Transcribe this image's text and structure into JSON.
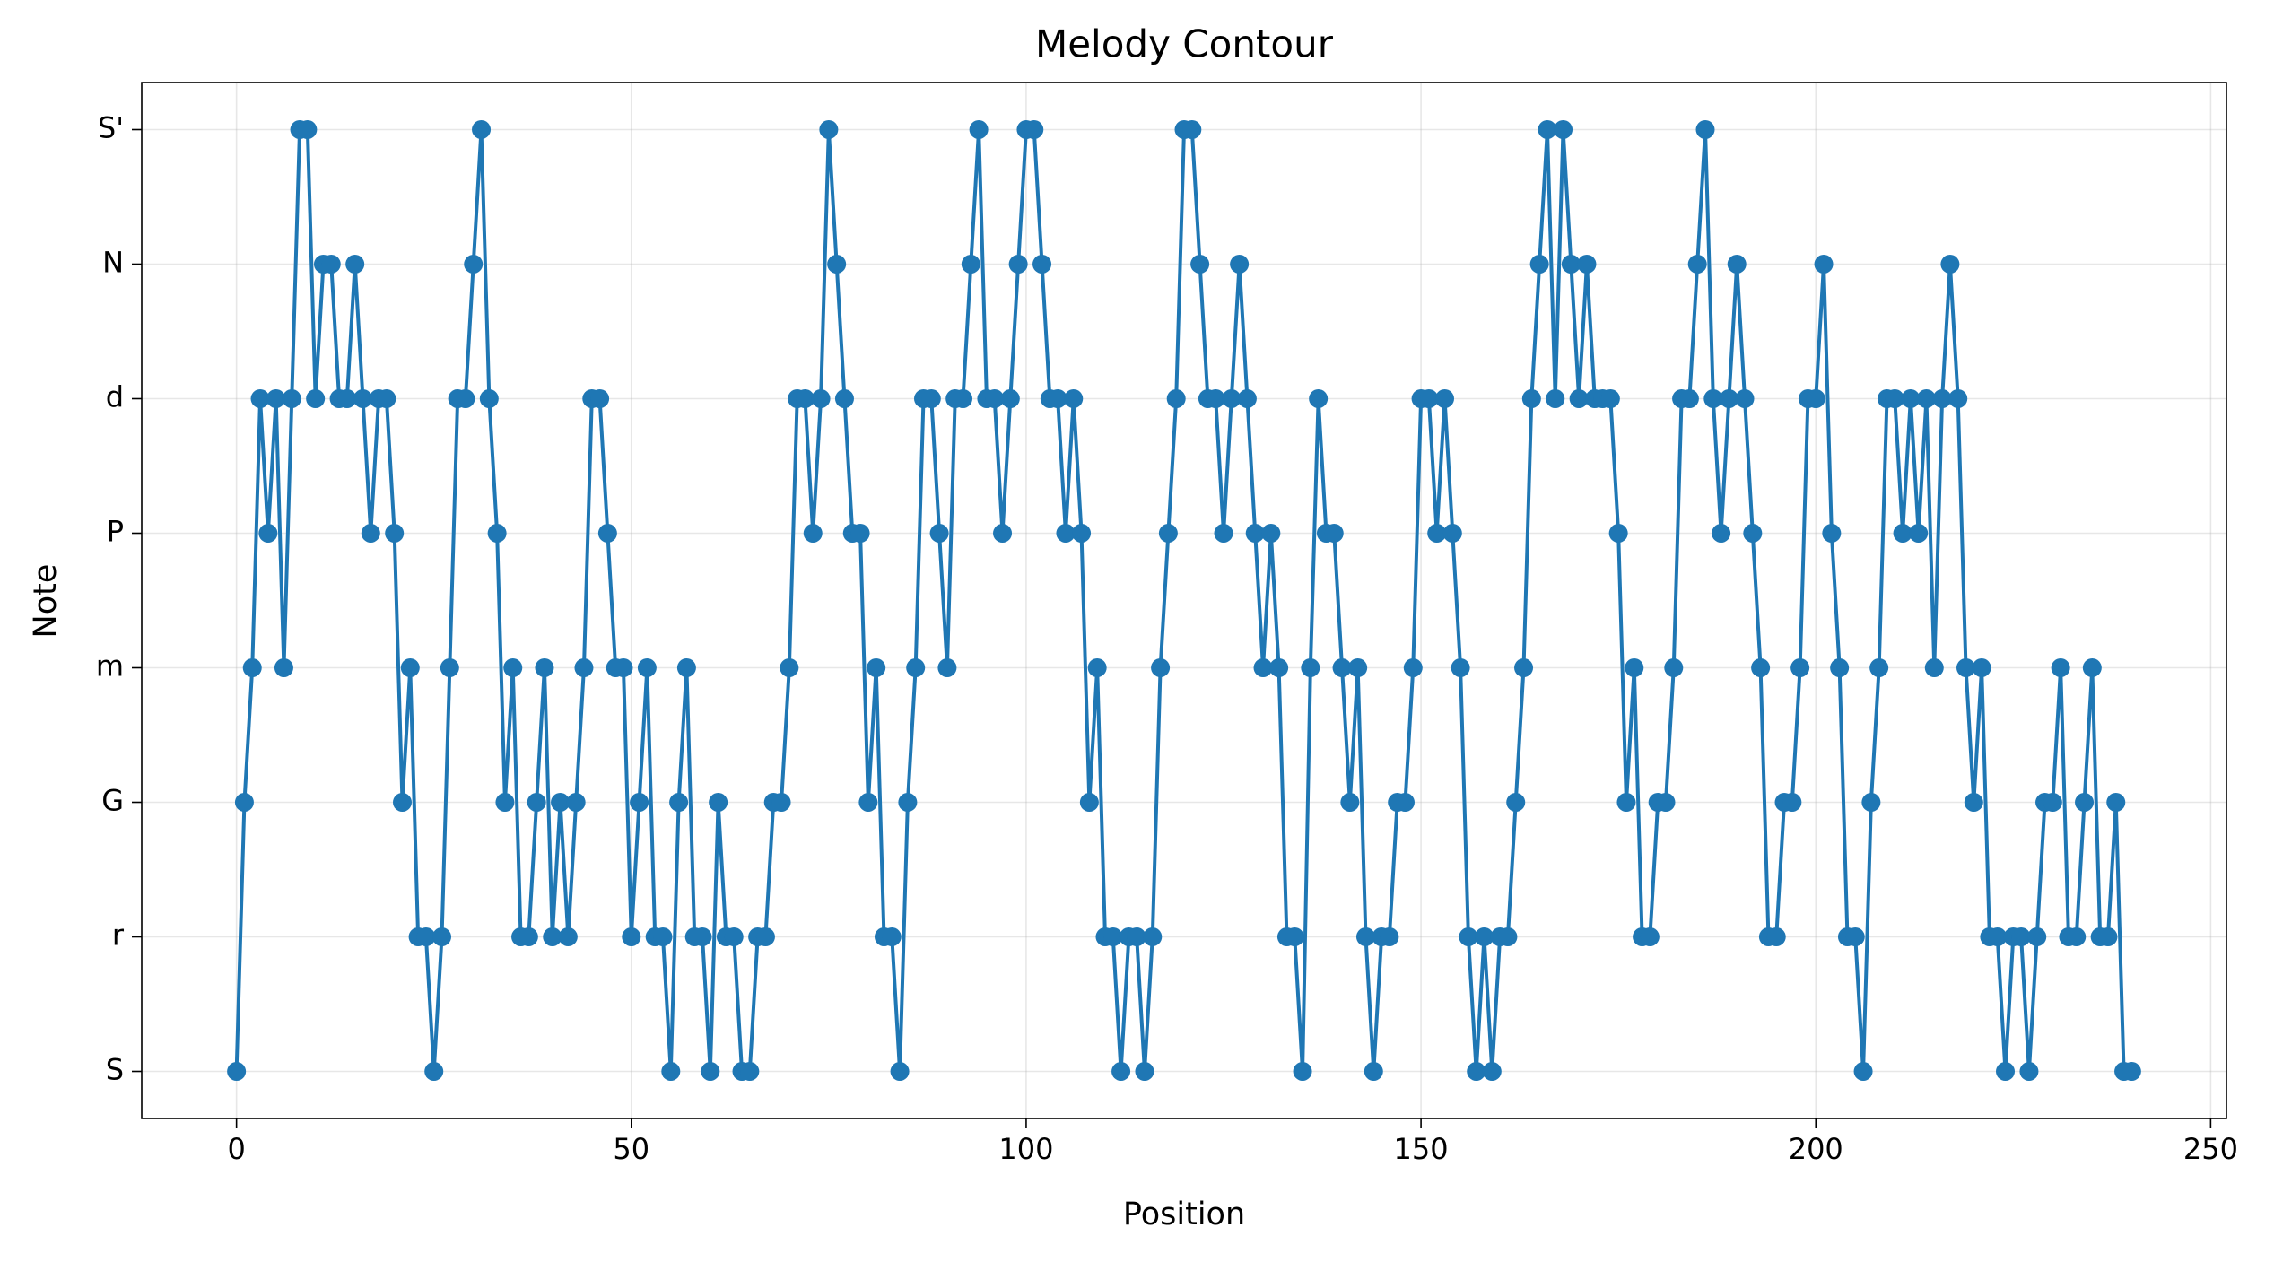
{
  "chart_data": {
    "type": "line",
    "title": "Melody Contour",
    "xlabel": "Position",
    "ylabel": "Note",
    "color": "#1f77b4",
    "grid": true,
    "x": [
      0,
      1,
      2,
      3,
      4,
      5,
      6,
      7,
      8,
      9,
      10,
      11,
      12,
      13,
      14,
      15,
      16,
      17,
      18,
      19,
      20,
      21,
      22,
      23,
      24,
      25,
      26,
      27,
      28,
      29,
      30,
      31,
      32,
      33,
      34,
      35,
      36,
      37,
      38,
      39,
      40,
      41,
      42,
      43,
      44,
      45,
      46,
      47,
      48,
      49,
      50,
      51,
      52,
      53,
      54,
      55,
      56,
      57,
      58,
      59,
      60,
      61,
      62,
      63,
      64,
      65,
      66,
      67,
      68,
      69,
      70,
      71,
      72,
      73,
      74,
      75,
      76,
      77,
      78,
      79,
      80,
      81,
      82,
      83,
      84,
      85,
      86,
      87,
      88,
      89,
      90,
      91,
      92,
      93,
      94,
      95,
      96,
      97,
      98,
      99,
      100,
      101,
      102,
      103,
      104,
      105,
      106,
      107,
      108,
      109,
      110,
      111,
      112,
      113,
      114,
      115,
      116,
      117,
      118,
      119,
      120,
      121,
      122,
      123,
      124,
      125,
      126,
      127,
      128,
      129,
      130,
      131,
      132,
      133,
      134,
      135,
      136,
      137,
      138,
      139,
      140,
      141,
      142,
      143,
      144,
      145,
      146,
      147,
      148,
      149,
      150,
      151,
      152,
      153,
      154,
      155,
      156,
      157,
      158,
      159,
      160,
      161,
      162,
      163,
      164,
      165,
      166,
      167,
      168,
      169,
      170,
      171,
      172,
      173,
      174,
      175,
      176,
      177,
      178,
      179,
      180,
      181,
      182,
      183,
      184,
      185,
      186,
      187,
      188,
      189,
      190,
      191,
      192,
      193,
      194,
      195,
      196,
      197,
      198,
      199,
      200,
      201,
      202,
      203,
      204,
      205,
      206,
      207,
      208,
      209,
      210,
      211,
      212,
      213,
      214,
      215,
      216,
      217,
      218,
      219,
      220,
      221,
      222,
      223,
      224,
      225,
      226,
      227,
      228,
      229,
      230,
      231,
      232,
      233,
      234,
      235,
      236,
      237,
      238,
      239,
      240
    ],
    "values": [
      0,
      2,
      3,
      5,
      4,
      5,
      3,
      5,
      7,
      7,
      5,
      6,
      6,
      5,
      5,
      6,
      5,
      4,
      5,
      5,
      4,
      2,
      3,
      1,
      1,
      0,
      1,
      3,
      5,
      5,
      6,
      7,
      5,
      4,
      2,
      3,
      1,
      1,
      2,
      3,
      1,
      2,
      1,
      2,
      3,
      5,
      5,
      4,
      3,
      3,
      1,
      2,
      3,
      1,
      1,
      0,
      2,
      3,
      1,
      1,
      0,
      2,
      1,
      1,
      0,
      0,
      1,
      1,
      2,
      2,
      3,
      5,
      5,
      4,
      5,
      7,
      6,
      5,
      4,
      4,
      2,
      3,
      1,
      1,
      0,
      2,
      3,
      5,
      5,
      4,
      3,
      5,
      5,
      6,
      7,
      5,
      5,
      4,
      5,
      6,
      7,
      7,
      6,
      5,
      5,
      4,
      5,
      4,
      2,
      3,
      1,
      1,
      0,
      1,
      1,
      0,
      1,
      3,
      4,
      5,
      7,
      7,
      6,
      5,
      5,
      4,
      5,
      6,
      5,
      4,
      3,
      4,
      3,
      1,
      1,
      0,
      3,
      5,
      4,
      4,
      3,
      2,
      3,
      1,
      0,
      1,
      1,
      2,
      2,
      3,
      5,
      5,
      4,
      5,
      4,
      3,
      1,
      0,
      1,
      0,
      1,
      1,
      2,
      3,
      5,
      6,
      7,
      5,
      7,
      6,
      5,
      6,
      5,
      5,
      5,
      4,
      2,
      3,
      1,
      1,
      2,
      2,
      3,
      5,
      5,
      6,
      7,
      5,
      4,
      5,
      6,
      5,
      4,
      3,
      1,
      1,
      2,
      2,
      3,
      5,
      5,
      6,
      4,
      3,
      1,
      1,
      0,
      2,
      3,
      5,
      5,
      4,
      5,
      4,
      5,
      3,
      5,
      6,
      5,
      3,
      2,
      3,
      1,
      1,
      0,
      1,
      1,
      0,
      1,
      2,
      2,
      3,
      1,
      1,
      2,
      3,
      1,
      1,
      2,
      0,
      0
    ],
    "xlim": [
      -12,
      252
    ],
    "xticks": [
      0,
      50,
      100,
      150,
      200,
      250
    ],
    "ylim": [
      -0.35,
      7.35
    ],
    "yticks": [
      {
        "value": 0,
        "label": "S"
      },
      {
        "value": 1,
        "label": "r"
      },
      {
        "value": 2,
        "label": "G"
      },
      {
        "value": 3,
        "label": "m"
      },
      {
        "value": 4,
        "label": "P"
      },
      {
        "value": 5,
        "label": "d"
      },
      {
        "value": 6,
        "label": "N"
      },
      {
        "value": 7,
        "label": "S'"
      }
    ]
  }
}
